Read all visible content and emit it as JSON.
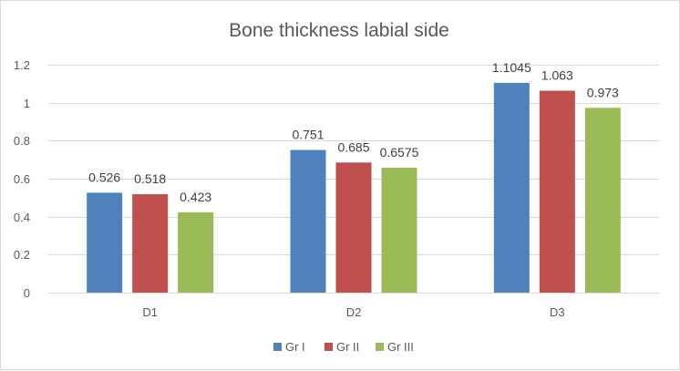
{
  "chart_data": {
    "type": "bar",
    "title": "Bone thickness labial side",
    "xlabel": "",
    "ylabel": "",
    "categories": [
      "D1",
      "D2",
      "D3"
    ],
    "series": [
      {
        "name": "Gr I",
        "color": "#4f81bd",
        "values": [
          0.526,
          0.751,
          1.1045
        ]
      },
      {
        "name": "Gr II",
        "color": "#c0504d",
        "values": [
          0.518,
          0.685,
          1.063
        ]
      },
      {
        "name": "Gr III",
        "color": "#9bbb59",
        "values": [
          0.423,
          0.6575,
          0.973
        ]
      }
    ],
    "data_labels": [
      [
        "0.526",
        "0.751",
        "1.1045"
      ],
      [
        "0.518",
        "0.685",
        "1.063"
      ],
      [
        "0.423",
        "0.6575",
        "0.973"
      ]
    ],
    "ylim": [
      0,
      1.2
    ],
    "yticks": [
      0,
      0.2,
      0.4,
      0.6,
      0.8,
      1,
      1.2
    ],
    "ytick_labels": [
      "0",
      "0.2",
      "0.4",
      "0.6",
      "0.8",
      "1",
      "1.2"
    ],
    "grid": true,
    "gridline_color": "#d9d9d9",
    "legend_position": "bottom"
  }
}
